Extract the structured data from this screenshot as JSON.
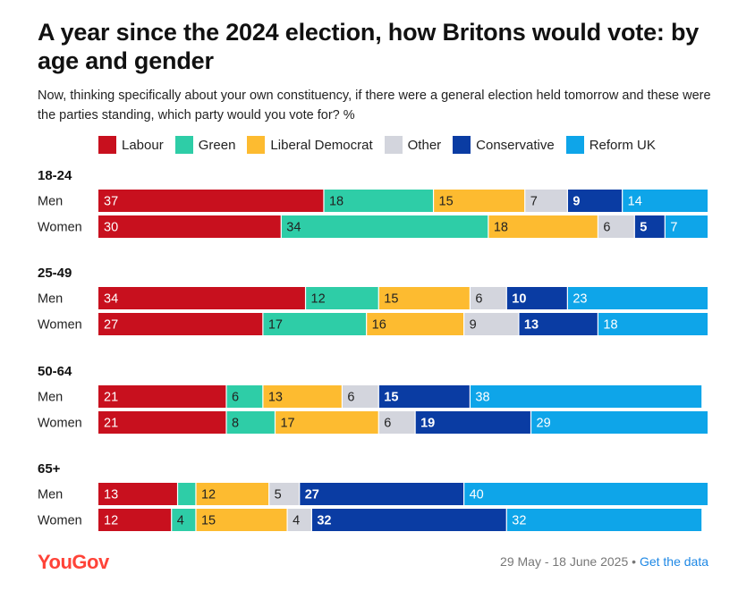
{
  "title": "A year since the 2024 election, how Britons would vote: by age and gender",
  "subtitle": "Now, thinking specifically about your own constituency, if there were a general election held tomorrow and these were the parties standing, which party would you vote for? %",
  "footer": {
    "logo": "YouGov",
    "date_range": "29 May - 18 June 2025",
    "separator": "•",
    "link": "Get the data"
  },
  "colors": {
    "Labour": "#c8101e",
    "Green": "#2ecda7",
    "Liberal Democrat": "#fdbb30",
    "Other": "#d3d5dd",
    "Conservative": "#0a3ca3",
    "Reform UK": "#0ea5e9"
  },
  "label_colors": {
    "Labour": "#ffffff",
    "Green": "#222222",
    "Liberal Democrat": "#222222",
    "Other": "#222222",
    "Conservative": "#ffffff",
    "Reform UK": "#ffffff"
  },
  "chart_data": {
    "type": "bar",
    "orientation": "horizontal",
    "stacked": true,
    "title": "A year since the 2024 election, how Britons would vote: by age and gender",
    "legend": [
      "Labour",
      "Green",
      "Liberal Democrat",
      "Other",
      "Conservative",
      "Reform UK"
    ],
    "xlim": [
      0,
      100
    ],
    "groups": [
      {
        "label": "18-24",
        "rows": [
          {
            "label": "Men",
            "values": [
              37,
              18,
              15,
              7,
              9,
              14
            ]
          },
          {
            "label": "Women",
            "values": [
              30,
              34,
              18,
              6,
              5,
              7
            ]
          }
        ]
      },
      {
        "label": "25-49",
        "rows": [
          {
            "label": "Men",
            "values": [
              34,
              12,
              15,
              6,
              10,
              23
            ]
          },
          {
            "label": "Women",
            "values": [
              27,
              17,
              16,
              9,
              13,
              18
            ]
          }
        ]
      },
      {
        "label": "50-64",
        "rows": [
          {
            "label": "Men",
            "values": [
              21,
              6,
              13,
              6,
              15,
              38
            ]
          },
          {
            "label": "Women",
            "values": [
              21,
              8,
              17,
              6,
              19,
              29
            ]
          }
        ]
      },
      {
        "label": "65+",
        "rows": [
          {
            "label": "Men",
            "values": [
              13,
              3,
              12,
              5,
              27,
              40
            ]
          },
          {
            "label": "Women",
            "values": [
              12,
              4,
              15,
              4,
              32,
              32
            ]
          }
        ]
      }
    ],
    "hidden_labels": [
      [
        3,
        0,
        1
      ]
    ]
  }
}
